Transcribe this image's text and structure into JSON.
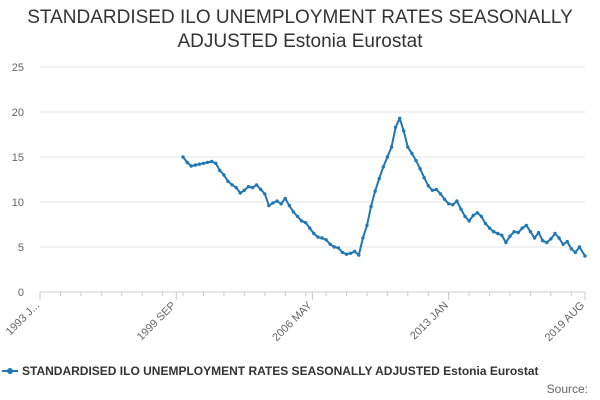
{
  "chart_data": {
    "type": "line",
    "title": "STANDARDISED ILO UNEMPLOYMENT RATES SEASONALLY ADJUSTED Estonia Eurostat",
    "title_lines": [
      "STANDARDISED ILO UNEMPLOYMENT RATES SEASONALLY",
      "ADJUSTED Estonia Eurostat"
    ],
    "xlabel": "",
    "ylabel": "",
    "ylim": [
      0,
      25
    ],
    "y_ticks": [
      0,
      5,
      10,
      15,
      20,
      25
    ],
    "xlim": [
      1993.0,
      2019.67
    ],
    "x_ticks": [
      {
        "label": "1993 J...",
        "value": 1993.0
      },
      {
        "label": "1999 SEP",
        "value": 1999.67
      },
      {
        "label": "2006 MAY",
        "value": 2006.33
      },
      {
        "label": "2013 JAN",
        "value": 2013.0
      },
      {
        "label": "2019 AUG",
        "value": 2019.67
      }
    ],
    "grid": true,
    "legend_position": "bottom",
    "series": [
      {
        "name": "STANDARDISED ILO UNEMPLOYMENT RATES SEASONALLY ADJUSTED Estonia Eurostat",
        "color": "#1f77b4",
        "points": [
          [
            2000.0,
            15.0
          ],
          [
            2000.2,
            14.4
          ],
          [
            2000.4,
            14.0
          ],
          [
            2000.6,
            14.1
          ],
          [
            2000.8,
            14.2
          ],
          [
            2001.0,
            14.3
          ],
          [
            2001.2,
            14.4
          ],
          [
            2001.4,
            14.5
          ],
          [
            2001.6,
            14.3
          ],
          [
            2001.8,
            13.5
          ],
          [
            2002.0,
            13.0
          ],
          [
            2002.2,
            12.3
          ],
          [
            2002.4,
            11.9
          ],
          [
            2002.6,
            11.6
          ],
          [
            2002.8,
            11.0
          ],
          [
            2003.0,
            11.3
          ],
          [
            2003.2,
            11.7
          ],
          [
            2003.4,
            11.6
          ],
          [
            2003.6,
            11.9
          ],
          [
            2003.8,
            11.4
          ],
          [
            2004.0,
            10.9
          ],
          [
            2004.2,
            9.6
          ],
          [
            2004.4,
            9.9
          ],
          [
            2004.6,
            10.1
          ],
          [
            2004.8,
            9.8
          ],
          [
            2005.0,
            10.4
          ],
          [
            2005.2,
            9.6
          ],
          [
            2005.4,
            8.9
          ],
          [
            2005.6,
            8.4
          ],
          [
            2005.8,
            7.9
          ],
          [
            2006.0,
            7.7
          ],
          [
            2006.2,
            7.1
          ],
          [
            2006.4,
            6.5
          ],
          [
            2006.6,
            6.1
          ],
          [
            2006.8,
            6.0
          ],
          [
            2007.0,
            5.8
          ],
          [
            2007.2,
            5.3
          ],
          [
            2007.4,
            5.0
          ],
          [
            2007.6,
            4.9
          ],
          [
            2007.8,
            4.4
          ],
          [
            2008.0,
            4.2
          ],
          [
            2008.2,
            4.3
          ],
          [
            2008.4,
            4.5
          ],
          [
            2008.6,
            4.1
          ],
          [
            2008.8,
            6.0
          ],
          [
            2009.0,
            7.4
          ],
          [
            2009.2,
            9.5
          ],
          [
            2009.4,
            11.2
          ],
          [
            2009.6,
            12.6
          ],
          [
            2009.8,
            13.9
          ],
          [
            2010.0,
            15.0
          ],
          [
            2010.2,
            16.1
          ],
          [
            2010.4,
            18.3
          ],
          [
            2010.6,
            19.3
          ],
          [
            2010.8,
            17.9
          ],
          [
            2011.0,
            16.1
          ],
          [
            2011.2,
            15.4
          ],
          [
            2011.4,
            14.6
          ],
          [
            2011.6,
            13.7
          ],
          [
            2011.8,
            12.7
          ],
          [
            2012.0,
            11.8
          ],
          [
            2012.2,
            11.3
          ],
          [
            2012.4,
            11.4
          ],
          [
            2012.6,
            10.9
          ],
          [
            2012.8,
            10.3
          ],
          [
            2013.0,
            9.8
          ],
          [
            2013.2,
            9.7
          ],
          [
            2013.4,
            10.1
          ],
          [
            2013.6,
            9.2
          ],
          [
            2013.8,
            8.4
          ],
          [
            2014.0,
            7.9
          ],
          [
            2014.2,
            8.5
          ],
          [
            2014.4,
            8.8
          ],
          [
            2014.6,
            8.4
          ],
          [
            2014.8,
            7.6
          ],
          [
            2015.0,
            7.1
          ],
          [
            2015.2,
            6.7
          ],
          [
            2015.4,
            6.5
          ],
          [
            2015.6,
            6.3
          ],
          [
            2015.8,
            5.5
          ],
          [
            2016.0,
            6.2
          ],
          [
            2016.2,
            6.7
          ],
          [
            2016.4,
            6.6
          ],
          [
            2016.6,
            7.1
          ],
          [
            2016.8,
            7.4
          ],
          [
            2017.0,
            6.7
          ],
          [
            2017.2,
            6.0
          ],
          [
            2017.4,
            6.6
          ],
          [
            2017.6,
            5.7
          ],
          [
            2017.8,
            5.5
          ],
          [
            2018.0,
            5.9
          ],
          [
            2018.2,
            6.5
          ],
          [
            2018.4,
            6.0
          ],
          [
            2018.6,
            5.3
          ],
          [
            2018.8,
            5.6
          ],
          [
            2019.0,
            4.8
          ],
          [
            2019.2,
            4.4
          ],
          [
            2019.4,
            5.0
          ],
          [
            2019.67,
            4.0
          ]
        ]
      }
    ]
  },
  "legend": {
    "label": "STANDARDISED ILO UNEMPLOYMENT RATES SEASONALLY ADJUSTED Estonia Eurostat"
  },
  "source": {
    "label": "Source:"
  }
}
